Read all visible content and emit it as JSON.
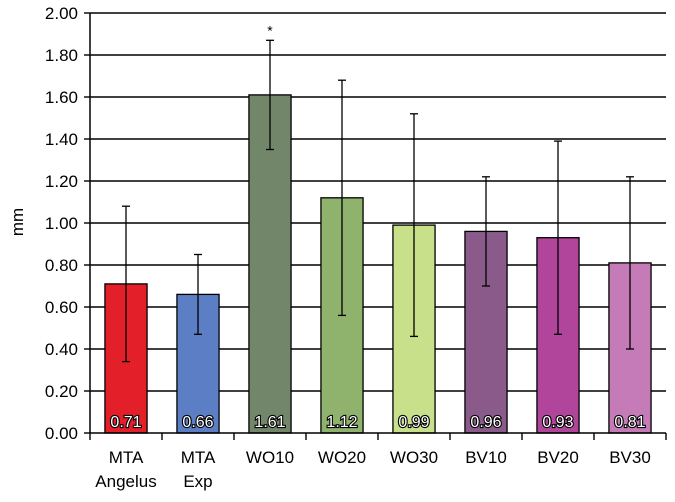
{
  "chart_data": {
    "type": "bar",
    "ylabel": "mm",
    "ylim": [
      0,
      2
    ],
    "yticks": [
      "0.00",
      "0.20",
      "0.40",
      "0.60",
      "0.80",
      "1.00",
      "1.20",
      "1.40",
      "1.60",
      "1.80",
      "2.00"
    ],
    "grid": true,
    "categories": [
      [
        "MTA",
        "Angelus"
      ],
      [
        "MTA",
        "Exp"
      ],
      [
        "WO10"
      ],
      [
        "WO20"
      ],
      [
        "WO30"
      ],
      [
        "BV10"
      ],
      [
        "BV20"
      ],
      [
        "BV30"
      ]
    ],
    "values": [
      0.71,
      0.66,
      1.61,
      1.12,
      0.99,
      0.96,
      0.93,
      0.81
    ],
    "value_labels": [
      "0.71",
      "0.66",
      "1.61",
      "1.12",
      "0.99",
      "0.96",
      "0.93",
      "0.81"
    ],
    "error": [
      0.37,
      0.19,
      0.26,
      0.56,
      0.53,
      0.26,
      0.46,
      0.41
    ],
    "colors": [
      "#e3202a",
      "#5b7ec4",
      "#72876a",
      "#8fb36c",
      "#c9e08a",
      "#8a5b8a",
      "#b0459b",
      "#c47bb7"
    ],
    "annotations": [
      {
        "category_index": 2,
        "text": "*"
      }
    ]
  }
}
